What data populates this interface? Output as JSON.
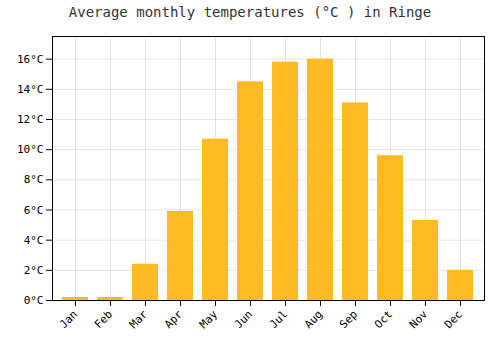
{
  "chart_data": {
    "type": "bar",
    "title": "Average monthly temperatures (°C ) in Ringe",
    "categories": [
      "Jan",
      "Feb",
      "Mar",
      "Apr",
      "May",
      "Jun",
      "Jul",
      "Aug",
      "Sep",
      "Oct",
      "Nov",
      "Dec"
    ],
    "values": [
      0.2,
      0.2,
      2.4,
      5.9,
      10.7,
      14.5,
      15.8,
      16.0,
      13.1,
      9.6,
      5.3,
      2.0
    ],
    "color": "#FFBB22",
    "ylim": [
      0,
      17.5
    ],
    "yticks": [
      {
        "value": 0,
        "label": "0°C"
      },
      {
        "value": 2,
        "label": "2°C"
      },
      {
        "value": 4,
        "label": "4°C"
      },
      {
        "value": 6,
        "label": "6°C"
      },
      {
        "value": 8,
        "label": "8°C"
      },
      {
        "value": 10,
        "label": "10°C"
      },
      {
        "value": 12,
        "label": "12°C"
      },
      {
        "value": 14,
        "label": "14°C"
      },
      {
        "value": 16,
        "label": "16°C"
      }
    ],
    "grid": true
  }
}
